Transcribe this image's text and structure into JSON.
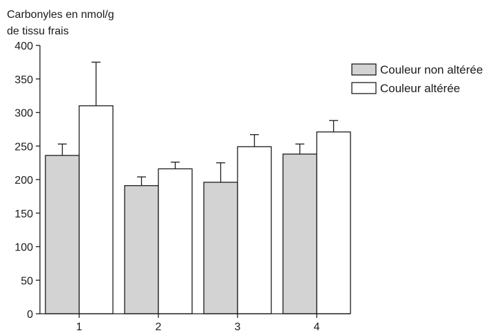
{
  "chart_data": {
    "type": "bar",
    "title": "",
    "ylabel_lines": [
      "Carbonyles en nmol/g",
      "de tissu frais"
    ],
    "xlabel": "",
    "categories": [
      "1",
      "2",
      "3",
      "4"
    ],
    "ylim": [
      0,
      400
    ],
    "yticks": [
      0,
      50,
      100,
      150,
      200,
      250,
      300,
      350,
      400
    ],
    "ytick_labels": [
      "0",
      "50",
      "100",
      "150",
      "200",
      "250",
      "300",
      "350",
      "400"
    ],
    "grid": false,
    "legend_position": "top-right",
    "series": [
      {
        "name": "Couleur non altérée",
        "color": "#d3d3d3",
        "values": [
          236,
          191,
          196,
          238
        ],
        "error_upper": [
          253,
          204,
          225,
          253
        ]
      },
      {
        "name": "Couleur altérée",
        "color": "#ffffff",
        "values": [
          310,
          216,
          249,
          271
        ],
        "error_upper": [
          375,
          226,
          267,
          288
        ]
      }
    ]
  }
}
